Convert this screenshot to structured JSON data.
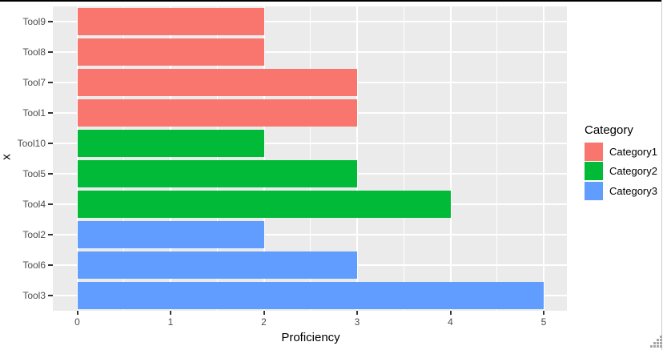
{
  "chart_data": {
    "type": "bar",
    "orientation": "horizontal",
    "title": "",
    "xlabel": "Proficiency",
    "ylabel": "x",
    "xlim": [
      0,
      5
    ],
    "x_ticks": [
      0,
      1,
      2,
      3,
      4,
      5
    ],
    "grid": "white major gridlines at integers, minor at halves, on gray panel",
    "categories": [
      "Tool9",
      "Tool8",
      "Tool7",
      "Tool1",
      "Tool10",
      "Tool5",
      "Tool4",
      "Tool2",
      "Tool6",
      "Tool3"
    ],
    "bars": [
      {
        "category": "Tool9",
        "value": 2,
        "group": "Category1"
      },
      {
        "category": "Tool8",
        "value": 2,
        "group": "Category1"
      },
      {
        "category": "Tool7",
        "value": 3,
        "group": "Category1"
      },
      {
        "category": "Tool1",
        "value": 3,
        "group": "Category1"
      },
      {
        "category": "Tool10",
        "value": 2,
        "group": "Category2"
      },
      {
        "category": "Tool5",
        "value": 3,
        "group": "Category2"
      },
      {
        "category": "Tool4",
        "value": 4,
        "group": "Category2"
      },
      {
        "category": "Tool2",
        "value": 2,
        "group": "Category3"
      },
      {
        "category": "Tool6",
        "value": 3,
        "group": "Category3"
      },
      {
        "category": "Tool3",
        "value": 5,
        "group": "Category3"
      }
    ],
    "legend": {
      "title": "Category",
      "position": "right",
      "entries": [
        {
          "label": "Category1",
          "color": "#F8766D"
        },
        {
          "label": "Category2",
          "color": "#00BA38"
        },
        {
          "label": "Category3",
          "color": "#619CFF"
        }
      ]
    },
    "colors": {
      "panel_background": "#EBEBEB",
      "gridline": "#FFFFFF",
      "tick_text": "#4D4D4D",
      "axis_title_text": "#000000"
    }
  }
}
